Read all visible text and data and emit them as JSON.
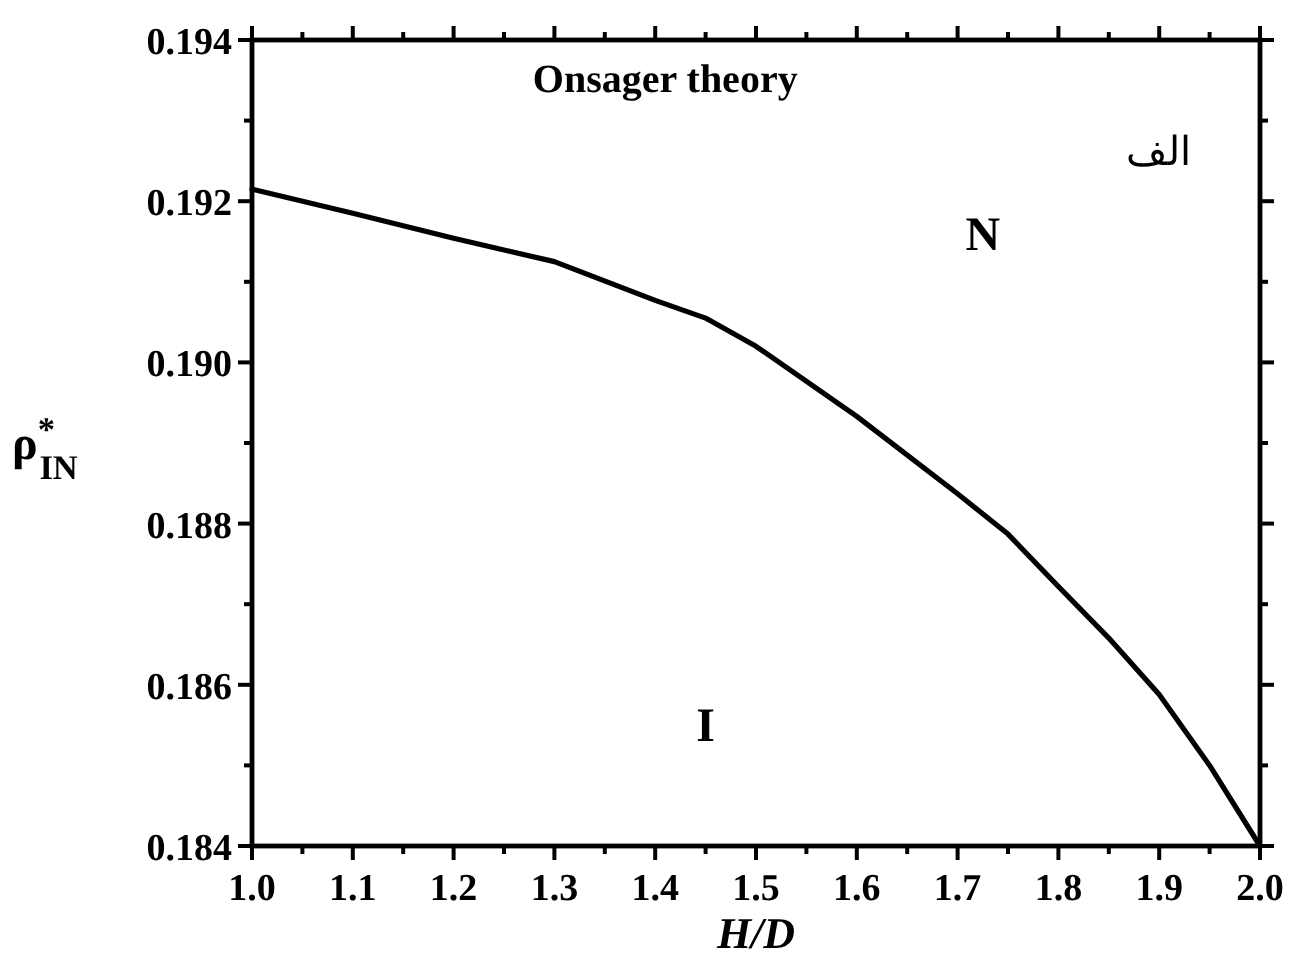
{
  "chart_data": {
    "type": "line",
    "xlabel": "H/D",
    "ylabel": "ρ$^{*}$$_{IN}$",
    "x": [
      1.0,
      1.1,
      1.2,
      1.3,
      1.4,
      1.45,
      1.5,
      1.6,
      1.7,
      1.75,
      1.8,
      1.85,
      1.9,
      1.95,
      2.0
    ],
    "series": [
      {
        "color": "#000000",
        "values": [
          0.19215,
          0.19185,
          0.19154,
          0.19125,
          0.19077,
          0.19055,
          0.1902,
          0.18933,
          0.18837,
          0.18787,
          0.18722,
          0.18658,
          0.18588,
          0.185,
          0.184
        ]
      }
    ],
    "xlim": [
      1.0,
      2.0
    ],
    "xticks": [
      {
        "value": 1.0,
        "label": "1.0"
      },
      1.1,
      1.2,
      1.3,
      1.4,
      1.5,
      1.6,
      1.7,
      1.8,
      1.9,
      {
        "value": 2.0,
        "label": "2.0"
      }
    ],
    "ylim": [
      0.184,
      0.194
    ],
    "yticks": [
      0.184,
      0.186,
      0.188,
      {
        "value": 0.19,
        "label": "0.190"
      },
      0.192,
      0.194
    ],
    "annotations": [
      "Onsager theory",
      "الف",
      "N",
      "I"
    ],
    "marker": "none",
    "line_style": "solid"
  }
}
